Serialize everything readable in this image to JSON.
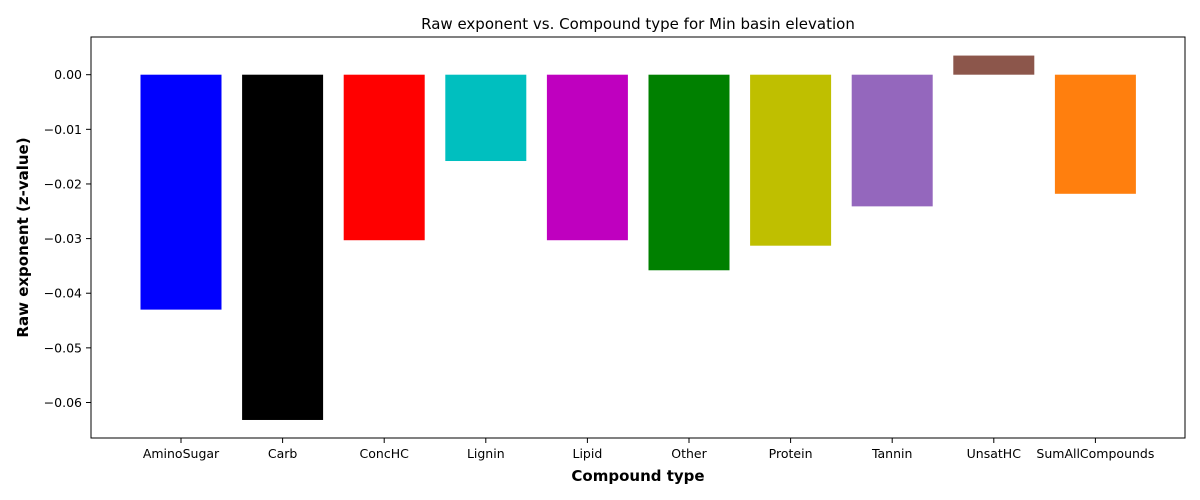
{
  "chart_data": {
    "type": "bar",
    "title": "Raw exponent vs. Compound type for Min basin elevation",
    "xlabel": "Compound type",
    "ylabel": "Raw exponent (z-value)",
    "categories": [
      "AminoSugar",
      "Carb",
      "ConcHC",
      "Lignin",
      "Lipid",
      "Other",
      "Protein",
      "Tannin",
      "UnsatHC",
      "SumAllCompounds"
    ],
    "values": [
      -0.043,
      -0.0632,
      -0.0303,
      -0.0158,
      -0.0303,
      -0.0358,
      -0.0313,
      -0.0241,
      0.0035,
      -0.0218
    ],
    "colors": [
      "#0000ff",
      "#000000",
      "#ff0000",
      "#00bfbf",
      "#bf00bf",
      "#008000",
      "#bfbf00",
      "#9467bd",
      "#8c564b",
      "#ff7f0e"
    ],
    "ylim": [
      -0.0665,
      0.0069
    ],
    "yticks": [
      0.0,
      -0.01,
      -0.02,
      -0.03,
      -0.04,
      -0.05,
      -0.06
    ],
    "ytick_labels": [
      "0.00",
      "−0.01",
      "−0.02",
      "−0.03",
      "−0.04",
      "−0.05",
      "−0.06"
    ],
    "grid": false,
    "legend": "none"
  }
}
